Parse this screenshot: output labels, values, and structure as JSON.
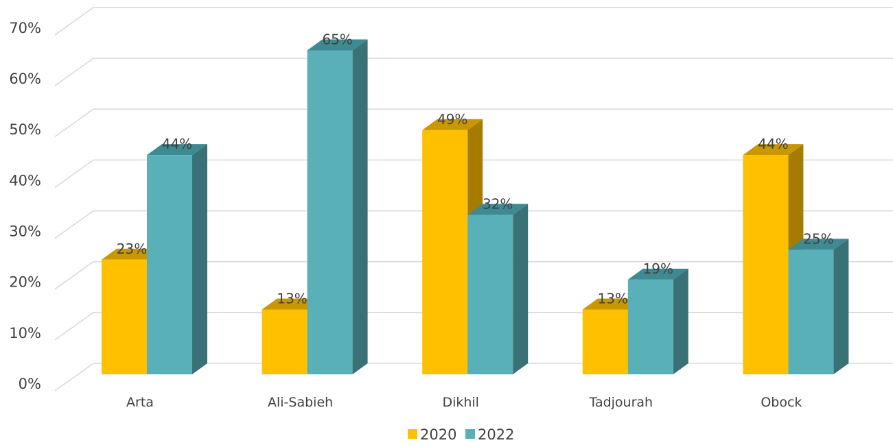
{
  "chart_data": {
    "type": "bar",
    "style": "3d-clustered-column",
    "categories": [
      "Arta",
      "Ali-Sabieh",
      "Dikhil",
      "Tadjourah",
      "Obock"
    ],
    "series": [
      {
        "name": "2020",
        "values": [
          23,
          13,
          49,
          13,
          44
        ],
        "color": "#FFC000",
        "top_color": "#C99700",
        "side_color": "#A67C00"
      },
      {
        "name": "2022",
        "values": [
          44,
          65,
          32,
          19,
          25
        ],
        "color": "#5AB0B8",
        "top_color": "#3E8A92",
        "side_color": "#3A7176"
      }
    ],
    "value_labels": [
      [
        "23%",
        "13%",
        "49%",
        "13%",
        "44%"
      ],
      [
        "44%",
        "65%",
        "32%",
        "19%",
        "25%"
      ]
    ],
    "y_ticks": [
      "0%",
      "10%",
      "20%",
      "30%",
      "40%",
      "50%",
      "60%",
      "70%"
    ],
    "ylim": [
      0,
      70
    ],
    "grid": true,
    "legend_position": "bottom-center"
  }
}
